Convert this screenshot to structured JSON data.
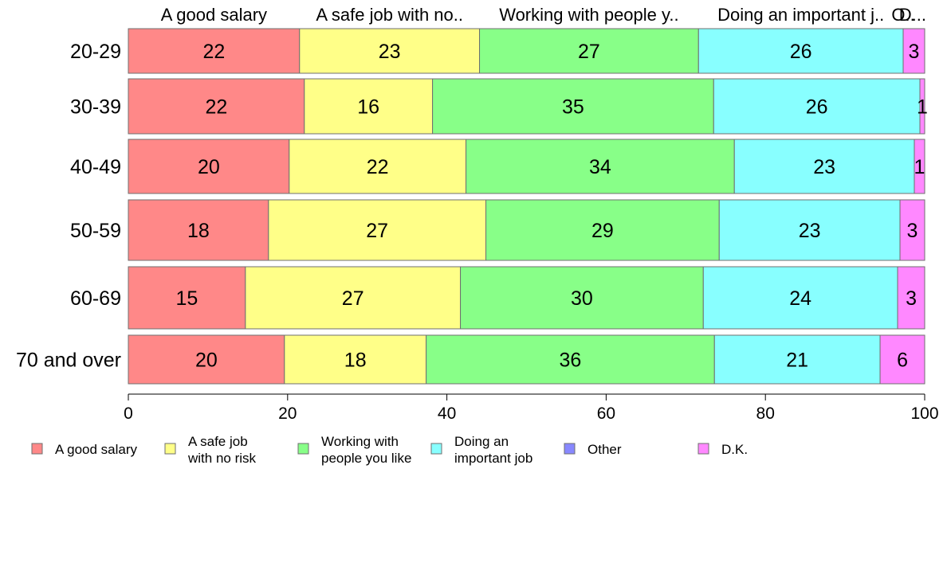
{
  "chart_data": {
    "type": "bar",
    "orientation": "horizontal",
    "stacked": true,
    "percent": true,
    "categories": [
      "20-29",
      "30-39",
      "40-49",
      "50-59",
      "60-69",
      "70 and over"
    ],
    "series": [
      {
        "name": "A good salary",
        "color": "#ff8888",
        "values": [
          21.5,
          22.1,
          20.2,
          17.6,
          14.7,
          19.6
        ]
      },
      {
        "name": "A safe job with no risk",
        "color": "#ffff88",
        "values": [
          22.6,
          16.1,
          22.2,
          27.3,
          27.0,
          17.8
        ]
      },
      {
        "name": "Working with people you like",
        "color": "#88ff88",
        "values": [
          27.5,
          35.3,
          33.7,
          29.3,
          30.5,
          36.2
        ]
      },
      {
        "name": "Doing an important job",
        "color": "#88ffff",
        "values": [
          25.7,
          25.9,
          22.6,
          22.7,
          24.4,
          20.8
        ]
      },
      {
        "name": "Other",
        "color": "#8888ff",
        "values": [
          0,
          0,
          0,
          0,
          0,
          0
        ]
      },
      {
        "name": "D.K.",
        "color": "#ff88ff",
        "values": [
          2.7,
          0.6,
          1.3,
          3.1,
          3.4,
          5.6
        ]
      }
    ],
    "data_labels": [
      [
        "22",
        "23",
        "27",
        "26",
        "",
        "3"
      ],
      [
        "22",
        "16",
        "35",
        "26",
        "",
        "1"
      ],
      [
        "20",
        "22",
        "34",
        "23",
        "",
        "1"
      ],
      [
        "18",
        "27",
        "29",
        "23",
        "",
        "3"
      ],
      [
        "15",
        "27",
        "30",
        "24",
        "",
        "3"
      ],
      [
        "20",
        "18",
        "36",
        "21",
        "",
        "6"
      ]
    ],
    "top_labels": [
      "A good salary",
      "A safe job with no..",
      "Working with people y..",
      "Doing an important j..",
      "O..",
      "D..."
    ],
    "legend": [
      {
        "lines": [
          "A good salary"
        ],
        "color": "#ff8888"
      },
      {
        "lines": [
          "A safe job",
          "with no risk"
        ],
        "color": "#ffff88"
      },
      {
        "lines": [
          "Working with",
          "people you like"
        ],
        "color": "#88ff88"
      },
      {
        "lines": [
          "Doing an",
          "important job"
        ],
        "color": "#88ffff"
      },
      {
        "lines": [
          "Other"
        ],
        "color": "#8888ff"
      },
      {
        "lines": [
          "D.K."
        ],
        "color": "#ff88ff"
      }
    ],
    "legend_position": "bottom",
    "xlim": [
      0,
      100
    ],
    "xticks": [
      0,
      20,
      40,
      60,
      80,
      100
    ],
    "xlabel": "",
    "ylabel": "",
    "title": "",
    "grid": false
  }
}
